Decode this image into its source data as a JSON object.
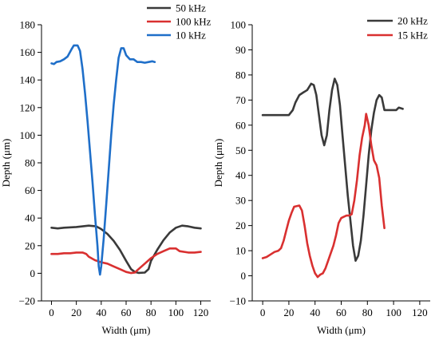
{
  "chart_data": [
    {
      "type": "line",
      "xlabel": "Width (μm)",
      "ylabel": "Depth (μm)",
      "xlim": [
        -8,
        128
      ],
      "ylim": [
        -20,
        180
      ],
      "xticks": [
        0,
        20,
        40,
        60,
        80,
        100,
        120
      ],
      "yticks": [
        -20,
        0,
        20,
        40,
        60,
        80,
        100,
        120,
        140,
        160,
        180
      ],
      "grid": false,
      "legend_position": "top-right",
      "series": [
        {
          "name": "50 kHz",
          "color": "#3a3a3a",
          "points": [
            [
              0,
              33
            ],
            [
              5,
              32.5
            ],
            [
              10,
              33
            ],
            [
              20,
              33.5
            ],
            [
              30,
              34.5
            ],
            [
              36,
              34
            ],
            [
              40,
              32
            ],
            [
              45,
              28.5
            ],
            [
              50,
              23.5
            ],
            [
              55,
              17
            ],
            [
              60,
              9
            ],
            [
              64,
              3
            ],
            [
              67,
              1
            ],
            [
              70,
              0.3
            ],
            [
              75,
              0.5
            ],
            [
              78,
              3
            ],
            [
              80,
              9
            ],
            [
              85,
              17
            ],
            [
              90,
              24
            ],
            [
              95,
              29.5
            ],
            [
              100,
              33
            ],
            [
              105,
              34.5
            ],
            [
              110,
              34
            ],
            [
              115,
              33
            ],
            [
              120,
              32.5
            ]
          ]
        },
        {
          "name": "100 kHz",
          "color": "#d93030",
          "points": [
            [
              0,
              14
            ],
            [
              5,
              14
            ],
            [
              10,
              14.5
            ],
            [
              15,
              14.5
            ],
            [
              20,
              15
            ],
            [
              25,
              15
            ],
            [
              28,
              14
            ],
            [
              30,
              12
            ],
            [
              35,
              9.5
            ],
            [
              40,
              8
            ],
            [
              45,
              7
            ],
            [
              50,
              5
            ],
            [
              55,
              3
            ],
            [
              60,
              1
            ],
            [
              64,
              0.2
            ],
            [
              67,
              0.5
            ],
            [
              70,
              3
            ],
            [
              75,
              7
            ],
            [
              80,
              11
            ],
            [
              85,
              14
            ],
            [
              90,
              16
            ],
            [
              95,
              18
            ],
            [
              100,
              18
            ],
            [
              103,
              16
            ],
            [
              110,
              15
            ],
            [
              115,
              15
            ],
            [
              120,
              15.5
            ]
          ]
        },
        {
          "name": "10 kHz",
          "color": "#1f6fc9",
          "points": [
            [
              0,
              152
            ],
            [
              2,
              151.5
            ],
            [
              4,
              153
            ],
            [
              7,
              153.5
            ],
            [
              10,
              155
            ],
            [
              13,
              157
            ],
            [
              16,
              162
            ],
            [
              18,
              165
            ],
            [
              21,
              165
            ],
            [
              23,
              161
            ],
            [
              25,
              148
            ],
            [
              27,
              130
            ],
            [
              29,
              110
            ],
            [
              31,
              88
            ],
            [
              33,
              66
            ],
            [
              35,
              42
            ],
            [
              37,
              20
            ],
            [
              38,
              5
            ],
            [
              39,
              -1
            ],
            [
              40,
              5
            ],
            [
              42,
              25
            ],
            [
              44,
              50
            ],
            [
              46,
              75
            ],
            [
              48,
              100
            ],
            [
              50,
              122
            ],
            [
              52,
              140
            ],
            [
              54,
              156
            ],
            [
              56,
              163
            ],
            [
              58,
              163
            ],
            [
              60,
              158
            ],
            [
              63,
              155
            ],
            [
              66,
              155
            ],
            [
              69,
              153
            ],
            [
              72,
              153
            ],
            [
              75,
              152.5
            ],
            [
              78,
              153
            ],
            [
              81,
              153.5
            ],
            [
              83,
              153
            ]
          ]
        }
      ]
    },
    {
      "type": "line",
      "xlabel": "Width (μm)",
      "ylabel": "Depth (μm)",
      "xlim": [
        -8,
        128
      ],
      "ylim": [
        -10,
        100
      ],
      "xticks": [
        0,
        20,
        40,
        60,
        80,
        100,
        120
      ],
      "yticks": [
        -10,
        0,
        10,
        20,
        30,
        40,
        50,
        60,
        70,
        80,
        90,
        100
      ],
      "grid": false,
      "legend_position": "top-right",
      "series": [
        {
          "name": "20 kHz",
          "color": "#3a3a3a",
          "points": [
            [
              0,
              64
            ],
            [
              5,
              64
            ],
            [
              10,
              64
            ],
            [
              15,
              64
            ],
            [
              20,
              64
            ],
            [
              23,
              66
            ],
            [
              25,
              69
            ],
            [
              28,
              72
            ],
            [
              31,
              73
            ],
            [
              34,
              74
            ],
            [
              37,
              76.5
            ],
            [
              39,
              76
            ],
            [
              41,
              72
            ],
            [
              43,
              64
            ],
            [
              45,
              56
            ],
            [
              47,
              52
            ],
            [
              49,
              56
            ],
            [
              51,
              66
            ],
            [
              53,
              74
            ],
            [
              55,
              78.5
            ],
            [
              57,
              76
            ],
            [
              59,
              68
            ],
            [
              61,
              56
            ],
            [
              63,
              44
            ],
            [
              65,
              32
            ],
            [
              67,
              22
            ],
            [
              69,
              12
            ],
            [
              71,
              6
            ],
            [
              73,
              8
            ],
            [
              75,
              14
            ],
            [
              77,
              24
            ],
            [
              79,
              36
            ],
            [
              81,
              48
            ],
            [
              83,
              58
            ],
            [
              85,
              65
            ],
            [
              87,
              70
            ],
            [
              89,
              72
            ],
            [
              91,
              71
            ],
            [
              93,
              66
            ],
            [
              96,
              66
            ],
            [
              99,
              66
            ],
            [
              102,
              66
            ],
            [
              104,
              67
            ],
            [
              107,
              66.5
            ]
          ]
        },
        {
          "name": "15 kHz",
          "color": "#d93030",
          "points": [
            [
              0,
              7
            ],
            [
              3,
              7.5
            ],
            [
              6,
              8.5
            ],
            [
              9,
              9.5
            ],
            [
              12,
              10
            ],
            [
              14,
              11
            ],
            [
              16,
              14
            ],
            [
              18,
              18
            ],
            [
              20,
              22
            ],
            [
              22,
              25
            ],
            [
              24,
              27.5
            ],
            [
              28,
              28
            ],
            [
              30,
              26
            ],
            [
              32,
              20
            ],
            [
              34,
              13
            ],
            [
              36,
              8
            ],
            [
              38,
              4
            ],
            [
              40,
              1
            ],
            [
              42,
              -0.5
            ],
            [
              44,
              0.5
            ],
            [
              46,
              1
            ],
            [
              48,
              3
            ],
            [
              50,
              6
            ],
            [
              52,
              9
            ],
            [
              54,
              12
            ],
            [
              56,
              16
            ],
            [
              58,
              21
            ],
            [
              60,
              23
            ],
            [
              62,
              23.5
            ],
            [
              64,
              24
            ],
            [
              66,
              24
            ],
            [
              68,
              24.5
            ],
            [
              70,
              30
            ],
            [
              72,
              38
            ],
            [
              74,
              48
            ],
            [
              76,
              55
            ],
            [
              78,
              60
            ],
            [
              79,
              64.5
            ],
            [
              81,
              60
            ],
            [
              83,
              52
            ],
            [
              85,
              46
            ],
            [
              87,
              44
            ],
            [
              89,
              39
            ],
            [
              91,
              28
            ],
            [
              93,
              19
            ]
          ]
        }
      ]
    }
  ]
}
